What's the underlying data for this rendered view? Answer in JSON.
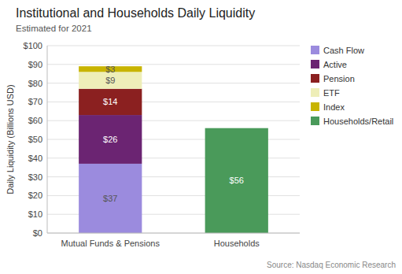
{
  "chart_data": {
    "type": "bar",
    "stacked": true,
    "title": "Institutional and Households Daily Liquidity",
    "subtitle": "Estimated for 2021",
    "y_label": "Daily Liquidity (Billions USD)",
    "source": "Source: Nasdaq Economic Research",
    "categories": [
      "Mutual Funds & Pensions",
      "Households"
    ],
    "series": [
      {
        "name": "Cash Flow",
        "color": "#9B8BDE",
        "values": [
          37,
          0
        ],
        "value_labels": [
          "$37",
          null
        ]
      },
      {
        "name": "Active",
        "color": "#6B2472",
        "values": [
          26,
          0
        ],
        "value_labels": [
          "$26",
          null
        ]
      },
      {
        "name": "Pension",
        "color": "#8B2020",
        "values": [
          14,
          0
        ],
        "value_labels": [
          "$14",
          null
        ]
      },
      {
        "name": "ETF",
        "color": "#EEEEB8",
        "values": [
          9,
          0
        ],
        "value_labels": [
          "$9",
          null
        ]
      },
      {
        "name": "Index",
        "color": "#C8B400",
        "values": [
          3,
          0
        ],
        "value_labels": [
          "$3",
          null
        ]
      },
      {
        "name": "Households/Retail",
        "color": "#4A9A5A",
        "values": [
          0,
          56
        ],
        "value_labels": [
          null,
          "$56"
        ]
      }
    ],
    "ylim": [
      0,
      100
    ],
    "yticks": [
      {
        "value": 0,
        "label": "$0"
      },
      {
        "value": 10,
        "label": "$10"
      },
      {
        "value": 20,
        "label": "$20"
      },
      {
        "value": 30,
        "label": "$30"
      },
      {
        "value": 40,
        "label": "$40"
      },
      {
        "value": 50,
        "label": "$50"
      },
      {
        "value": 60,
        "label": "$60"
      },
      {
        "value": 70,
        "label": "$70"
      },
      {
        "value": 80,
        "label": "$80"
      },
      {
        "value": 90,
        "label": "$90"
      },
      {
        "value": 100,
        "label": "$100"
      }
    ],
    "grid": true,
    "data_labels": true,
    "legend": "upper right"
  }
}
